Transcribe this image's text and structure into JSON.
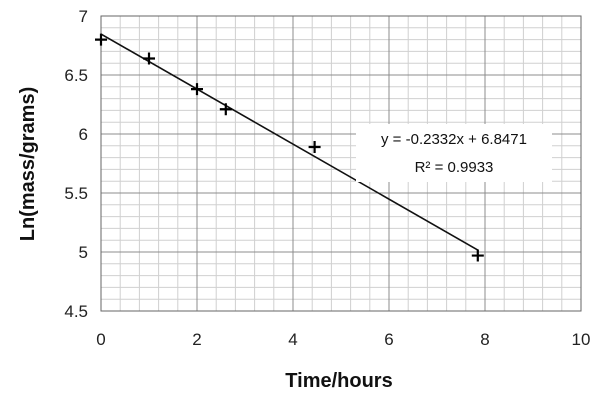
{
  "chart_data": {
    "type": "scatter",
    "xlabel": "Time/hours",
    "ylabel": "Ln(mass/grams)",
    "xlim": [
      0,
      10
    ],
    "ylim": [
      4.5,
      7
    ],
    "x_ticks": [
      "0",
      "2",
      "4",
      "6",
      "8",
      "10"
    ],
    "y_ticks": [
      "4.5",
      "5",
      "5.5",
      "6",
      "6.5",
      "7"
    ],
    "grid": true,
    "marker": "plus",
    "points": [
      {
        "x": 0,
        "y": 6.8
      },
      {
        "x": 1.0,
        "y": 6.64
      },
      {
        "x": 2.0,
        "y": 6.38
      },
      {
        "x": 2.6,
        "y": 6.21
      },
      {
        "x": 4.45,
        "y": 5.89
      },
      {
        "x": 7.85,
        "y": 4.97
      }
    ],
    "trendline": {
      "slope": -0.2332,
      "intercept": 6.8471,
      "x_range": [
        0,
        7.85
      ],
      "equation_label": "y = -0.2332x + 6.8471",
      "r2_label": "R² = 0.9933"
    }
  }
}
